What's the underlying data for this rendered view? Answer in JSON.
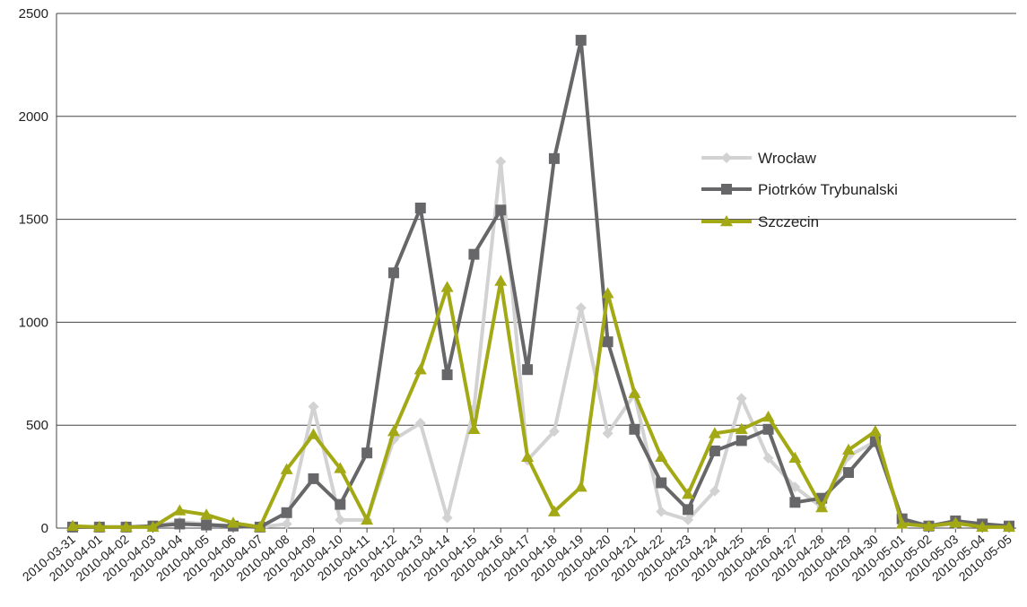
{
  "chart_data": {
    "type": "line",
    "title": "",
    "xlabel": "",
    "ylabel": "",
    "ylim": [
      0,
      2500
    ],
    "yticks": [
      0,
      500,
      1000,
      1500,
      2000,
      2500
    ],
    "grid": "horizontal",
    "legend_position": "right",
    "categories": [
      "2010-03-31",
      "2010-04-01",
      "2010-04-02",
      "2010-04-03",
      "2010-04-04",
      "2010-04-05",
      "2010-04-06",
      "2010-04-07",
      "2010-04-08",
      "2010-04-09",
      "2010-04-10",
      "2010-04-11",
      "2010-04-12",
      "2010-04-13",
      "2010-04-14",
      "2010-04-15",
      "2010-04-16",
      "2010-04-17",
      "2010-04-18",
      "2010-04-19",
      "2010-04-20",
      "2010-04-21",
      "2010-04-22",
      "2010-04-23",
      "2010-04-24",
      "2010-04-25",
      "2010-04-26",
      "2010-04-27",
      "2010-04-28",
      "2010-04-29",
      "2010-04-30",
      "2010-05-01",
      "2010-05-02",
      "2010-05-03",
      "2010-05-04",
      "2010-05-05"
    ],
    "series": [
      {
        "name": "Wrocław",
        "color": "#d2d2d2",
        "marker": "diamond",
        "values": [
          5,
          5,
          5,
          10,
          30,
          20,
          10,
          5,
          20,
          590,
          40,
          40,
          430,
          510,
          50,
          580,
          1780,
          330,
          470,
          1070,
          460,
          650,
          80,
          40,
          180,
          630,
          340,
          200,
          100,
          350,
          420,
          40,
          10,
          20,
          10,
          10
        ]
      },
      {
        "name": "Piotrków Trybunalski",
        "color": "#67676a",
        "marker": "square",
        "values": [
          5,
          5,
          5,
          10,
          20,
          15,
          10,
          5,
          75,
          240,
          115,
          365,
          1240,
          1555,
          745,
          1330,
          1545,
          770,
          1795,
          2370,
          905,
          480,
          220,
          90,
          375,
          425,
          480,
          125,
          145,
          270,
          420,
          45,
          10,
          35,
          20,
          10
        ]
      },
      {
        "name": "Szczecin",
        "color": "#a3a914",
        "marker": "triangle",
        "values": [
          10,
          5,
          5,
          5,
          85,
          65,
          25,
          5,
          285,
          455,
          290,
          40,
          470,
          770,
          1170,
          480,
          1200,
          345,
          80,
          200,
          1140,
          655,
          345,
          165,
          460,
          480,
          540,
          340,
          100,
          380,
          470,
          20,
          10,
          25,
          5,
          5
        ]
      }
    ]
  }
}
